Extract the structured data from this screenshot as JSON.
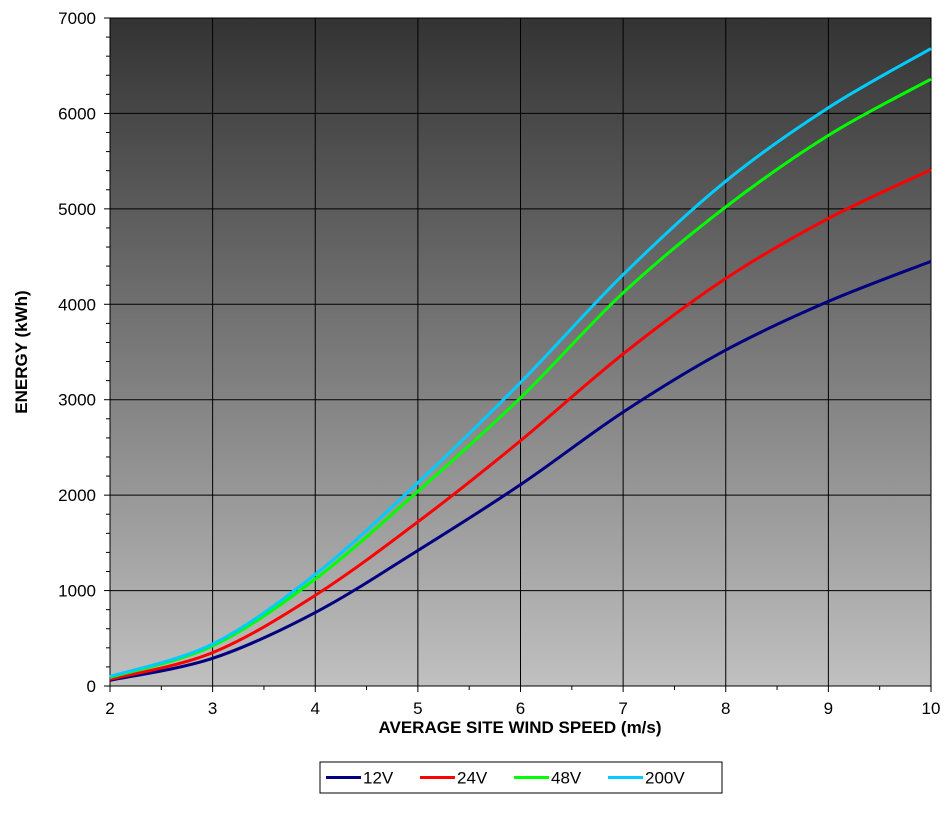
{
  "chart_data": {
    "type": "line",
    "title": "",
    "xlabel": "AVERAGE SITE WIND SPEED (m/s)",
    "ylabel": "ENERGY (kWh)",
    "xlim": [
      2,
      10
    ],
    "ylim": [
      0,
      7000
    ],
    "x_ticks": [
      2,
      3,
      4,
      5,
      6,
      7,
      8,
      9,
      10
    ],
    "y_ticks": [
      0,
      1000,
      2000,
      3000,
      4000,
      5000,
      6000,
      7000
    ],
    "grid": true,
    "legend_position": "bottom",
    "background": "gradient dark-top to light-bottom",
    "x": [
      2,
      3,
      4,
      5,
      6,
      7,
      8,
      9,
      10
    ],
    "series": [
      {
        "name": "12V",
        "color": "#000080",
        "values": [
          60,
          290,
          770,
          1420,
          2110,
          2870,
          3520,
          4030,
          4450
        ]
      },
      {
        "name": "24V",
        "color": "#ff0000",
        "values": [
          70,
          350,
          950,
          1720,
          2570,
          3480,
          4270,
          4900,
          5410
        ]
      },
      {
        "name": "48V",
        "color": "#00ff00",
        "values": [
          90,
          420,
          1120,
          2040,
          3020,
          4120,
          5020,
          5770,
          6360
        ]
      },
      {
        "name": "200V",
        "color": "#00ccff",
        "values": [
          100,
          440,
          1170,
          2130,
          3180,
          4310,
          5290,
          6060,
          6680
        ]
      }
    ]
  }
}
